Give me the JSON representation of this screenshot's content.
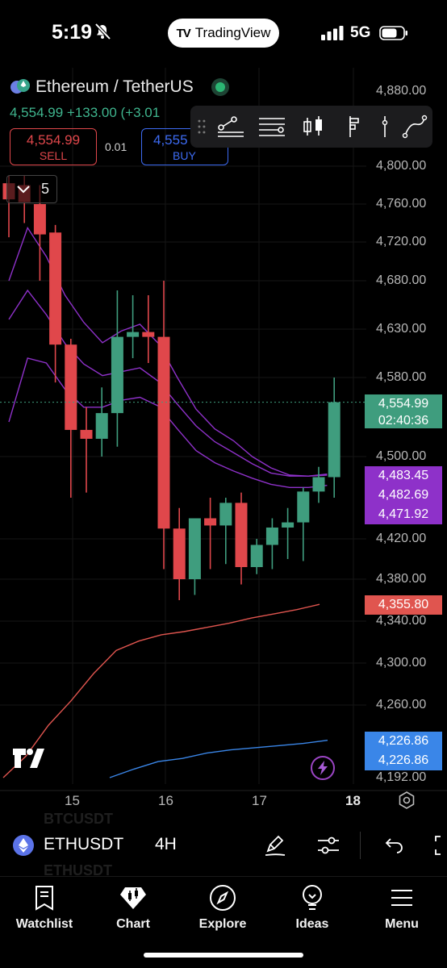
{
  "status_bar": {
    "time": "5:19",
    "app_pill": "TradingView",
    "network": "5G"
  },
  "header": {
    "symbol_title": "Ethereum / TetherUS",
    "price_line": "4,554.99 +133.00 (+3.01",
    "sell": {
      "price": "4,554.99",
      "label": "SELL"
    },
    "spread": "0.01",
    "buy": {
      "price": "4,555",
      "label": "BUY"
    },
    "interval_count": "5"
  },
  "drawing_toolbar": [
    "trend-line-tool",
    "horizontal-lines-tool",
    "candles-tool",
    "pitchfork-tool",
    "vertical-line-tool",
    "curve-tool"
  ],
  "price_axis": {
    "ticks": [
      "4,880.00",
      "4,800.00",
      "4,760.00",
      "4,720.00",
      "4,680.00",
      "4,630.00",
      "4,580.00",
      "4,500.00",
      "4,420.00",
      "4,380.00",
      "4,340.00",
      "4,300.00",
      "4,260.00",
      "4,192.00"
    ],
    "tags": [
      {
        "value": "4,554.99",
        "sub": "02:40:36",
        "color": "#3f9d7e"
      },
      {
        "value": "4,483.45",
        "color": "#8e31c9"
      },
      {
        "value": "4,482.69",
        "color": "#8e31c9"
      },
      {
        "value": "4,471.92",
        "color": "#8e31c9"
      },
      {
        "value": "4,355.80",
        "color": "#e0554f"
      },
      {
        "value": "4,226.86",
        "color": "#3a86e8"
      },
      {
        "value": "4,226.86",
        "color": "#3a86e8"
      }
    ]
  },
  "time_axis": [
    "15",
    "16",
    "17",
    "18"
  ],
  "chart_data": {
    "type": "candlestick",
    "symbol": "ETHUSDT",
    "interval": "4H",
    "candles": [
      {
        "o": 4782,
        "h": 4790,
        "l": 4725,
        "c": 4765
      },
      {
        "o": 4780,
        "h": 4790,
        "l": 4740,
        "c": 4762
      },
      {
        "o": 4760,
        "h": 4780,
        "l": 4680,
        "c": 4728
      },
      {
        "o": 4730,
        "h": 4738,
        "l": 4575,
        "c": 4614
      },
      {
        "o": 4614,
        "h": 4620,
        "l": 4460,
        "c": 4527
      },
      {
        "o": 4527,
        "h": 4550,
        "l": 4465,
        "c": 4518
      },
      {
        "o": 4518,
        "h": 4570,
        "l": 4500,
        "c": 4544
      },
      {
        "o": 4544,
        "h": 4670,
        "l": 4510,
        "c": 4622
      },
      {
        "o": 4622,
        "h": 4665,
        "l": 4600,
        "c": 4627
      },
      {
        "o": 4627,
        "h": 4665,
        "l": 4595,
        "c": 4622
      },
      {
        "o": 4622,
        "h": 4680,
        "l": 4390,
        "c": 4430
      },
      {
        "o": 4430,
        "h": 4450,
        "l": 4360,
        "c": 4380
      },
      {
        "o": 4380,
        "h": 4440,
        "l": 4365,
        "c": 4440
      },
      {
        "o": 4440,
        "h": 4460,
        "l": 4390,
        "c": 4433
      },
      {
        "o": 4433,
        "h": 4460,
        "l": 4395,
        "c": 4455
      },
      {
        "o": 4455,
        "h": 4465,
        "l": 4375,
        "c": 4392
      },
      {
        "o": 4392,
        "h": 4420,
        "l": 4385,
        "c": 4414
      },
      {
        "o": 4414,
        "h": 4440,
        "l": 4390,
        "c": 4431
      },
      {
        "o": 4431,
        "h": 4450,
        "l": 4400,
        "c": 4436
      },
      {
        "o": 4436,
        "h": 4470,
        "l": 4398,
        "c": 4466
      },
      {
        "o": 4466,
        "h": 4490,
        "l": 4455,
        "c": 4480
      },
      {
        "o": 4480,
        "h": 4580,
        "l": 4460,
        "c": 4554.99
      }
    ],
    "ma_lines": [
      {
        "color": "#8e31c9",
        "values": [
          4680,
          4735,
          4705,
          4665,
          4637,
          4616,
          4628,
          4635,
          4615,
          4580,
          4548,
          4528,
          4516,
          4500,
          4489,
          4482,
          4481,
          4483
        ]
      },
      {
        "color": "#8e31c9",
        "values": [
          4640,
          4670,
          4645,
          4615,
          4594,
          4582,
          4586,
          4590,
          4576,
          4553,
          4531,
          4515,
          4504,
          4493,
          4484,
          4481,
          4481,
          4482
        ]
      },
      {
        "color": "#8e31c9",
        "values": [
          4535,
          4600,
          4595,
          4568,
          4550,
          4550,
          4557,
          4560,
          4551,
          4528,
          4506,
          4494,
          4486,
          4479,
          4473,
          4470,
          4470,
          4472
        ]
      },
      {
        "color": "#e0554f",
        "values": [
          4180,
          4212,
          4241,
          4264,
          4290,
          4312,
          4321,
          4327,
          4330,
          4334,
          4338,
          4343,
          4347,
          4351,
          4356
        ]
      },
      {
        "color": "#3a86e8",
        "values": [
          4192,
          4200,
          4207,
          4210,
          4215,
          4218,
          4220,
          4222,
          4224,
          4227
        ]
      }
    ],
    "current_price": 4554.99,
    "ylim": [
      4192,
      4880
    ]
  },
  "symbol_bar": {
    "symbol": "ETHUSDT",
    "timeframe": "4H",
    "ghost_above": "BTCUSDT",
    "ghost_below": "ETHUSDT"
  },
  "nav": [
    "Watchlist",
    "Chart",
    "Explore",
    "Ideas",
    "Menu"
  ]
}
